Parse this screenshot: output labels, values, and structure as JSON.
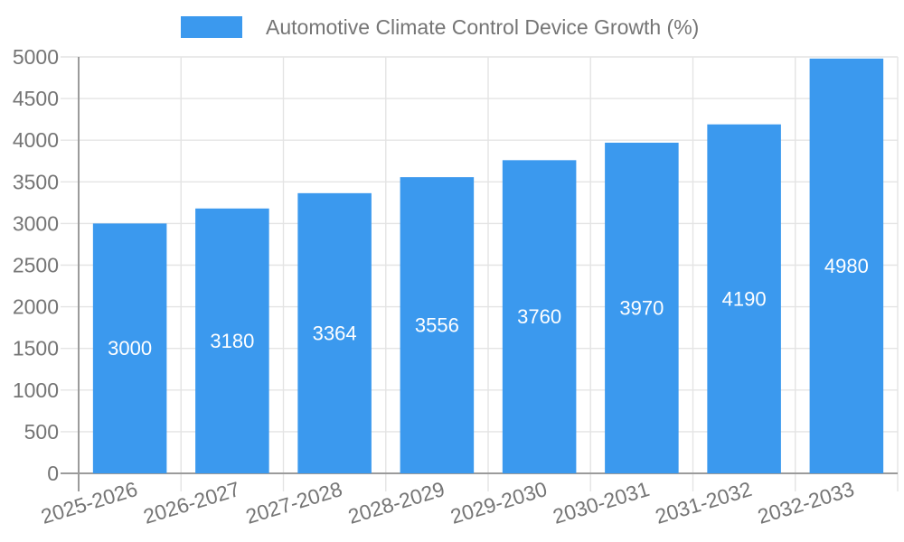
{
  "legend": {
    "position": "top",
    "swatch_color": "#3B99EE"
  },
  "chart_data": {
    "type": "bar",
    "title": "Automotive Climate Control Device Growth (%)",
    "categories": [
      "2025-2026",
      "2026-2027",
      "2027-2028",
      "2028-2029",
      "2029-2030",
      "2030-2031",
      "2031-2032",
      "2032-2033"
    ],
    "values": [
      3000,
      3180,
      3364,
      3556,
      3760,
      3970,
      4190,
      4980
    ],
    "xlabel": "",
    "ylabel": "",
    "ylim": [
      0,
      5000
    ],
    "yticks": [
      0,
      500,
      1000,
      1500,
      2000,
      2500,
      3000,
      3500,
      4000,
      4500,
      5000
    ],
    "grid": true,
    "legend_position": "top",
    "x_label_rotation": -17,
    "value_labels_inside_bars": true,
    "colors": {
      "bar": "#3B99EE",
      "value_label": "#FFFFFF",
      "axis_text": "#757575",
      "grid_line": "#E4E4E4",
      "axis_line": "#9B9B9B",
      "background": "#FFFFFF"
    }
  }
}
